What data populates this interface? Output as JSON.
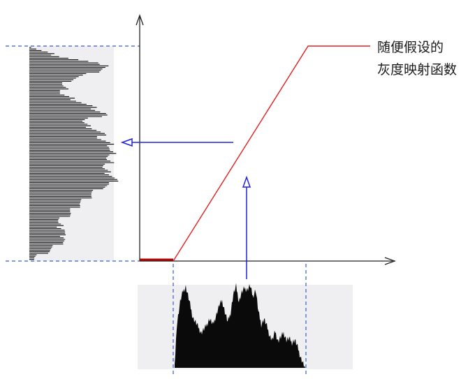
{
  "label": {
    "line1": "随便假设的",
    "line2": "灰度映射函数"
  },
  "colors": {
    "axis": "#222222",
    "mapping_curve": "#e02020",
    "mapping_flat": "#b00000",
    "arrow": "#1f22d8",
    "guide": "#3a5ad6",
    "panel_bg": "#efeef0",
    "histogram": "#0a0a0a"
  },
  "icons": {
    "axis_arrow": "arrowhead-icon",
    "projection_arrow": "open-arrowhead-icon"
  }
}
